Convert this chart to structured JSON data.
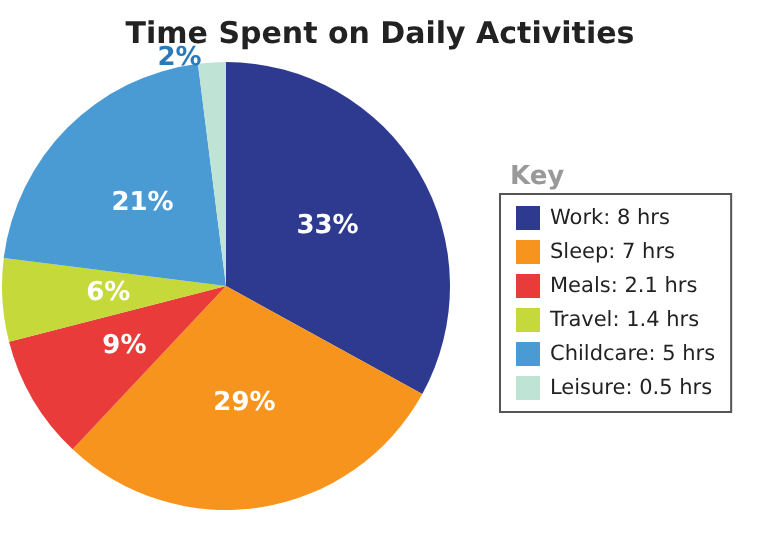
{
  "chart_data": {
    "type": "pie",
    "title": "Time Spent on Daily Activities",
    "legend_title": "Key",
    "categories": [
      "Work: 8 hrs",
      "Sleep: 7 hrs",
      "Meals: 2.1 hrs",
      "Travel: 1.4 hrs",
      "Childcare: 5 hrs",
      "Leisure: 0.5 hrs"
    ],
    "values": [
      33,
      29,
      9,
      6,
      21,
      2
    ],
    "colors": [
      "#2e3a8f",
      "#f7941d",
      "#e93c3a",
      "#c5d93a",
      "#4a9ad4",
      "#bfe3d5"
    ],
    "value_labels": [
      "33%",
      "29%",
      "9%",
      "6%",
      "21%",
      "2%"
    ],
    "legend": "right"
  }
}
